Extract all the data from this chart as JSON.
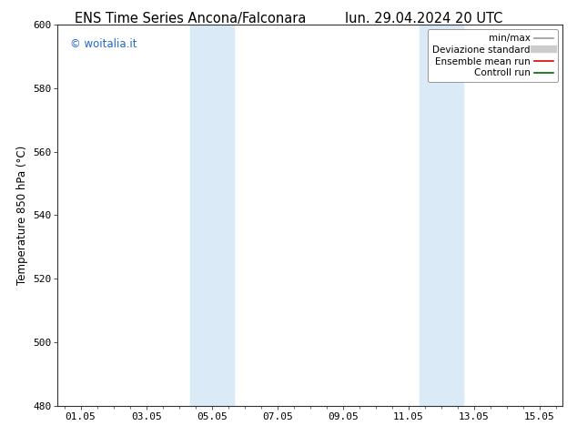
{
  "title_left": "ENS Time Series Ancona/Falconara",
  "title_right": "lun. 29.04.2024 20 UTC",
  "ylabel": "Temperature 850 hPa (°C)",
  "ylim": [
    480,
    600
  ],
  "yticks": [
    480,
    500,
    520,
    540,
    560,
    580,
    600
  ],
  "xtick_labels": [
    "01.05",
    "03.05",
    "05.05",
    "07.05",
    "09.05",
    "11.05",
    "13.05",
    "15.05"
  ],
  "xtick_positions": [
    0,
    2,
    4,
    6,
    8,
    10,
    12,
    14
  ],
  "shaded_bands": [
    {
      "x_start": 3.33,
      "x_end": 4.67
    },
    {
      "x_start": 10.33,
      "x_end": 11.67
    }
  ],
  "shaded_color": "#daeaf7",
  "watermark_text": "© woitalia.it",
  "watermark_color": "#2266cc",
  "legend_entries": [
    {
      "label": "min/max",
      "color": "#999999",
      "lw": 1.2,
      "style": "-"
    },
    {
      "label": "Deviazione standard",
      "color": "#cccccc",
      "lw": 6,
      "style": "-"
    },
    {
      "label": "Ensemble mean run",
      "color": "#dd0000",
      "lw": 1.2,
      "style": "-"
    },
    {
      "label": "Controll run",
      "color": "#006600",
      "lw": 1.2,
      "style": "-"
    }
  ],
  "bg_color": "#ffffff",
  "spine_color": "#333333",
  "font_size_title": 10.5,
  "font_size_axis": 8.5,
  "font_size_tick": 8,
  "font_size_legend": 7.5,
  "font_size_watermark": 8.5,
  "xlim": [
    -0.7,
    14.7
  ]
}
